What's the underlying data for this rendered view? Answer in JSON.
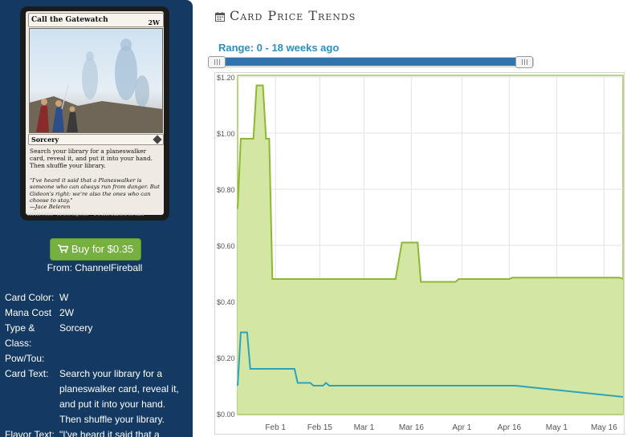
{
  "card": {
    "name": "Call the Gatewatch",
    "mana": "2W",
    "type_line": "Sorcery",
    "rules_text": "Search your library for a planeswalker card, reveal it, and put it into your hand. Then shuffle your library.",
    "flavor_text": "\"I've heard it said that a Planeswalker is someone who can always run from danger. But Gideon's right: we're also the ones who can choose to stay.\"",
    "flavor_attribution": "—Jace Beleren",
    "footer": "016/184 R  OGW • EN  Yefim Kligerman   ™ & © 2016 Wizards of the Coast"
  },
  "buy": {
    "label": "Buy for $0.35",
    "from": "From: ChannelFireball",
    "icon": "cart-icon"
  },
  "info": {
    "rows": [
      {
        "key": "Card Color:",
        "value": "W"
      },
      {
        "key": "Mana Cost",
        "value": "2W"
      },
      {
        "key": "Type & Class:",
        "value": "Sorcery"
      },
      {
        "key": "Pow/Tou:",
        "value": ""
      },
      {
        "key": "Card Text:",
        "value": "Search your library for a planeswalker card, reveal it, and put it into your hand. Then shuffle your library."
      },
      {
        "key": "Flavor Text:",
        "value": "\"I've heard it said that a Planeswalker is someone who"
      }
    ]
  },
  "main": {
    "title": "Card Price Trends",
    "title_icon": "calendar-icon",
    "range_label": "Range: 0 - 18 weeks ago"
  },
  "colors": {
    "sidebar": "#143a63",
    "buy_button": "#76b041",
    "range_text": "#2d8fc1",
    "slider_fill": "#3073ad",
    "series_1": "#8cb832",
    "series_1_fill": "#d4e6a4",
    "series_2": "#2ba4bb"
  },
  "chart_data": {
    "type": "area",
    "title": "",
    "xlabel": "",
    "ylabel": "",
    "x_ticks": [
      "Feb 1",
      "Feb 15",
      "Mar 1",
      "Mar 16",
      "Apr 1",
      "Apr 16",
      "May 1",
      "May 16"
    ],
    "x_tick_days": [
      32,
      46,
      60,
      75,
      91,
      106,
      121,
      136
    ],
    "y_ticks": [
      "$0.00",
      "$0.20",
      "$0.40",
      "$0.60",
      "$0.80",
      "$1.00",
      "$1.20"
    ],
    "ylim": [
      0,
      1.2
    ],
    "xlim_days": [
      20,
      142
    ],
    "grid": true,
    "legend": "none",
    "series": [
      {
        "filled": true,
        "points": [
          [
            20,
            0.73
          ],
          [
            21,
            0.98
          ],
          [
            25,
            0.98
          ],
          [
            26,
            1.17
          ],
          [
            28,
            1.17
          ],
          [
            29,
            0.98
          ],
          [
            30,
            0.98
          ],
          [
            31,
            0.48
          ],
          [
            70,
            0.48
          ],
          [
            72,
            0.61
          ],
          [
            77,
            0.61
          ],
          [
            78,
            0.47
          ],
          [
            89,
            0.47
          ],
          [
            90,
            0.48
          ],
          [
            106,
            0.48
          ],
          [
            107,
            0.485
          ],
          [
            141,
            0.485
          ],
          [
            142,
            0.48
          ]
        ]
      },
      {
        "filled": false,
        "points": [
          [
            20,
            0.1
          ],
          [
            21,
            0.29
          ],
          [
            23,
            0.29
          ],
          [
            24,
            0.16
          ],
          [
            38,
            0.16
          ],
          [
            39,
            0.11
          ],
          [
            43,
            0.11
          ],
          [
            44,
            0.1
          ],
          [
            47,
            0.1
          ],
          [
            48,
            0.11
          ],
          [
            49,
            0.1
          ],
          [
            108,
            0.1
          ],
          [
            142,
            0.06
          ]
        ]
      }
    ]
  }
}
